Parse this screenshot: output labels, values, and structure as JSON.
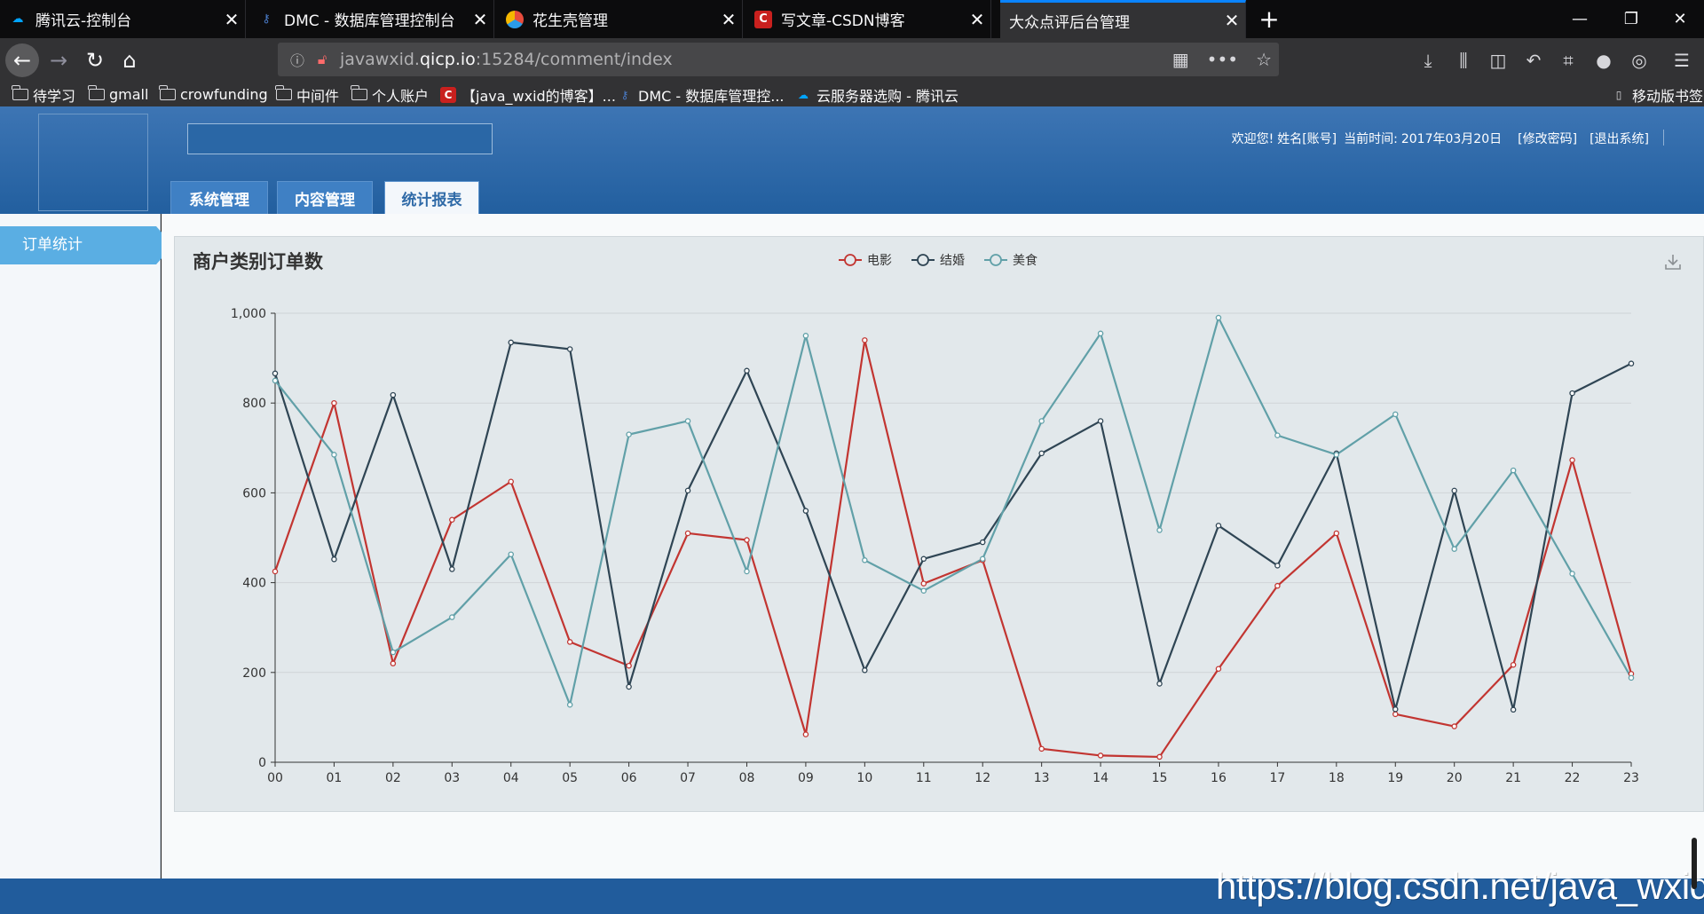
{
  "browser": {
    "tabs": [
      {
        "title": "腾讯云-控制台",
        "favicon": "cloud-icon",
        "color": "#00a4ff",
        "active": false
      },
      {
        "title": "DMC - 数据库管理控制台",
        "favicon": "key-icon",
        "color": "#4a7cc9",
        "active": false
      },
      {
        "title": "花生壳管理",
        "favicon": "peanut-icon",
        "color": "#e84c3d",
        "active": false
      },
      {
        "title": "写文章-CSDN博客",
        "favicon": "csdn-icon",
        "color": "#c9201e",
        "active": false
      },
      {
        "title": "大众点评后台管理",
        "favicon": "",
        "color": "",
        "active": true
      }
    ],
    "url_prefix": "javawxid.",
    "url_host": "qicp.io",
    "url_suffix": ":15284/comment/index",
    "bookmarks": [
      {
        "label": "待学习",
        "icon": "folder-icon"
      },
      {
        "label": "gmall",
        "icon": "folder-icon"
      },
      {
        "label": "crowfunding",
        "icon": "folder-icon"
      },
      {
        "label": "中间件",
        "icon": "folder-icon"
      },
      {
        "label": "个人账户",
        "icon": "folder-icon"
      },
      {
        "label": "【java_wxid的博客】...",
        "icon": "csdn-icon"
      },
      {
        "label": "DMC - 数据库管理控...",
        "icon": "key-icon"
      },
      {
        "label": "云服务器选购 - 腾讯云",
        "icon": "cloud-icon"
      }
    ],
    "mobile_bookmarks": "移动版书签"
  },
  "app": {
    "welcome": "欢迎您!",
    "user": "姓名[账号]",
    "time_label": "当前时间:",
    "date": "2017年03月20日",
    "change_password": "[修改密码]",
    "logout": "[退出系统]",
    "nav_tabs": [
      "系统管理",
      "内容管理",
      "统计报表"
    ],
    "active_tab": "统计报表",
    "side_items": [
      "订单统计"
    ],
    "accent": "#3d7fc4",
    "header_color": "#2d69aa"
  },
  "chart_data": {
    "type": "line",
    "title": "商户类别订单数",
    "xlabel": "",
    "ylabel": "",
    "categories": [
      "00",
      "01",
      "02",
      "03",
      "04",
      "05",
      "06",
      "07",
      "08",
      "09",
      "10",
      "11",
      "12",
      "13",
      "14",
      "15",
      "16",
      "17",
      "18",
      "19",
      "20",
      "21",
      "22",
      "23"
    ],
    "ylim": [
      0,
      1000
    ],
    "yticks": [
      "0",
      "200",
      "400",
      "600",
      "800",
      "1,000"
    ],
    "grid": true,
    "legend": "top-center",
    "series": [
      {
        "name": "电影",
        "color": "#c23531",
        "values": [
          425,
          800,
          220,
          540,
          625,
          268,
          215,
          510,
          495,
          62,
          940,
          398,
          450,
          30,
          15,
          12,
          208,
          393,
          510,
          107,
          80,
          217,
          673,
          197
        ]
      },
      {
        "name": "结婚",
        "color": "#2f4554",
        "values": [
          866,
          452,
          818,
          430,
          935,
          920,
          168,
          605,
          872,
          560,
          205,
          453,
          490,
          688,
          760,
          175,
          527,
          438,
          688,
          118,
          605,
          117,
          822,
          888
        ]
      },
      {
        "name": "美食",
        "color": "#61a0a8",
        "values": [
          850,
          685,
          245,
          323,
          463,
          128,
          730,
          760,
          425,
          950,
          450,
          382,
          453,
          760,
          955,
          517,
          990,
          728,
          685,
          775,
          475,
          650,
          420,
          188
        ]
      }
    ]
  },
  "watermark": "https://blog.csdn.net/java_wxid"
}
